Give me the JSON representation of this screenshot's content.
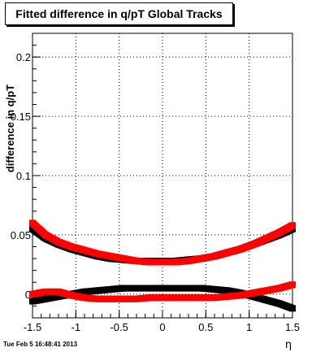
{
  "title": "Fitted difference in q/pT  Global Tracks",
  "timestamp": "Tue Feb  5 16:48:41 2013",
  "chart_data": {
    "type": "scatter",
    "title": "Fitted difference in q/pT  Global Tracks",
    "xlabel": "η",
    "ylabel": "difference in q/pT",
    "xlim": [
      -1.5,
      1.5
    ],
    "ylim": [
      -0.02,
      0.22
    ],
    "grid": true,
    "x_ticks": [
      "-1.5",
      "-1",
      "-0.5",
      "0",
      "0.5",
      "1",
      "1.5"
    ],
    "y_ticks": [
      "0",
      "0.05",
      "0.1",
      "0.15",
      "0.2"
    ],
    "x_tick_values": [
      -1.5,
      -1,
      -0.5,
      0,
      0.5,
      1,
      1.5
    ],
    "y_tick_values": [
      0,
      0.05,
      0.1,
      0.15,
      0.2
    ],
    "series": [
      {
        "color": "#000000",
        "x": [
          -1.5,
          -1.35,
          -1.2,
          -1.05,
          -0.9,
          -0.75,
          -0.6,
          -0.45,
          -0.3,
          -0.15,
          0.0,
          0.15,
          0.3,
          0.45,
          0.6,
          0.75,
          0.9,
          1.05,
          1.2,
          1.35,
          1.5
        ],
        "y": [
          0.055,
          0.047,
          0.042,
          0.038,
          0.035,
          0.032,
          0.03,
          0.029,
          0.028,
          0.028,
          0.028,
          0.028,
          0.029,
          0.03,
          0.032,
          0.035,
          0.038,
          0.042,
          0.046,
          0.05,
          0.055
        ]
      },
      {
        "color": "#ff0000",
        "x": [
          -1.5,
          -1.35,
          -1.2,
          -1.05,
          -0.9,
          -0.75,
          -0.6,
          -0.45,
          -0.3,
          -0.15,
          0.0,
          0.15,
          0.3,
          0.45,
          0.6,
          0.75,
          0.9,
          1.05,
          1.2,
          1.35,
          1.5
        ],
        "y": [
          0.06,
          0.05,
          0.044,
          0.04,
          0.037,
          0.034,
          0.032,
          0.03,
          0.028,
          0.027,
          0.027,
          0.027,
          0.028,
          0.03,
          0.032,
          0.035,
          0.038,
          0.042,
          0.047,
          0.052,
          0.058
        ]
      },
      {
        "color": "#000000",
        "x": [
          -1.5,
          -1.35,
          -1.2,
          -1.05,
          -0.9,
          -0.75,
          -0.6,
          -0.45,
          -0.3,
          -0.15,
          0.0,
          0.15,
          0.3,
          0.45,
          0.6,
          0.75,
          0.9,
          1.05,
          1.2,
          1.35,
          1.5
        ],
        "y": [
          -0.006,
          -0.004,
          -0.002,
          0.0,
          0.002,
          0.003,
          0.004,
          0.005,
          0.005,
          0.005,
          0.005,
          0.005,
          0.005,
          0.005,
          0.004,
          0.003,
          0.001,
          -0.002,
          -0.005,
          -0.008,
          -0.012
        ]
      },
      {
        "color": "#ff0000",
        "x": [
          -1.5,
          -1.35,
          -1.2,
          -1.05,
          -0.9,
          -0.75,
          -0.6,
          -0.45,
          -0.3,
          -0.15,
          0.0,
          0.15,
          0.3,
          0.45,
          0.6,
          0.75,
          0.9,
          1.05,
          1.2,
          1.35,
          1.5
        ],
        "y": [
          0.0,
          0.002,
          0.002,
          -0.001,
          -0.003,
          -0.004,
          -0.004,
          -0.004,
          -0.004,
          -0.003,
          -0.003,
          -0.003,
          -0.003,
          -0.003,
          -0.003,
          -0.002,
          -0.001,
          0.001,
          0.003,
          0.005,
          0.008
        ]
      }
    ]
  }
}
